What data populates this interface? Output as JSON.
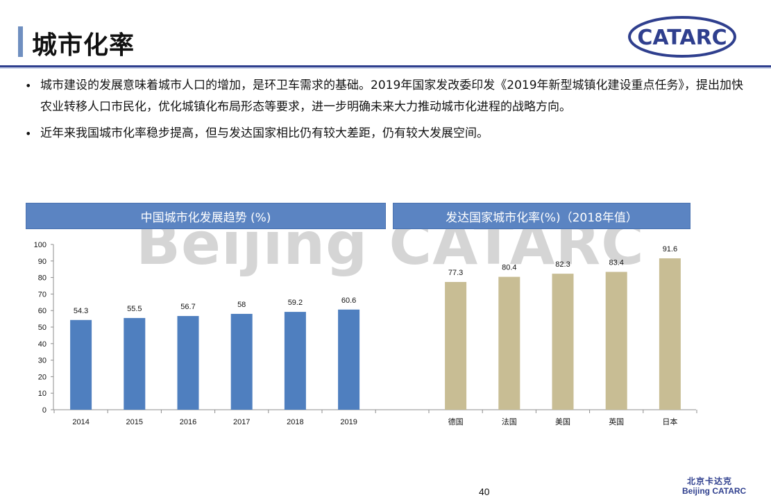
{
  "page": {
    "title": "城市化率",
    "bullets": [
      "城市建设的发展意味着城市人口的增加，是环卫车需求的基础。2019年国家发改委印发《2019年新型城镇化建设重点任务》，提出加快农业转移人口市民化，优化城镇化布局形态等要求，进一步明确未来大力推动城市化进程的战略方向。",
      "近年来我国城市化率稳步提高，但与发达国家相比仍有较大差距，仍有较大发展空间。"
    ],
    "watermark": "Beijing CATARC",
    "logo_text": "CATARC",
    "page_number": "40",
    "footer_cn": "北京卡达克",
    "footer_en": "Beijing CATARC"
  },
  "colors": {
    "china_bar": "#4f7fbf",
    "developed_bar": "#c8bd94",
    "header_bg": "#5b84c2",
    "brand": "#2f3f8e"
  },
  "chart_data": [
    {
      "type": "bar",
      "title": "中国城市化发展趋势 (%)",
      "categories": [
        "2014",
        "2015",
        "2016",
        "2017",
        "2018",
        "2019"
      ],
      "values": [
        54.3,
        55.5,
        56.7,
        58,
        59.2,
        60.6
      ],
      "data_labels": [
        "54.3",
        "55.5",
        "56.7",
        "58",
        "59.2",
        "60.6"
      ],
      "ylim": [
        0,
        100
      ],
      "yticks": [
        0,
        10,
        20,
        30,
        40,
        50,
        60,
        70,
        80,
        90,
        100
      ],
      "grid": false
    },
    {
      "type": "bar",
      "title": "发达国家城市化率(%)（2018年值）",
      "categories": [
        "德国",
        "法国",
        "美国",
        "英国",
        "日本"
      ],
      "values": [
        77.3,
        80.4,
        82.3,
        83.4,
        91.6
      ],
      "data_labels": [
        "77.3",
        "80.4",
        "82.3",
        "83.4",
        "91.6"
      ],
      "ylim": [
        0,
        100
      ],
      "grid": false
    }
  ]
}
